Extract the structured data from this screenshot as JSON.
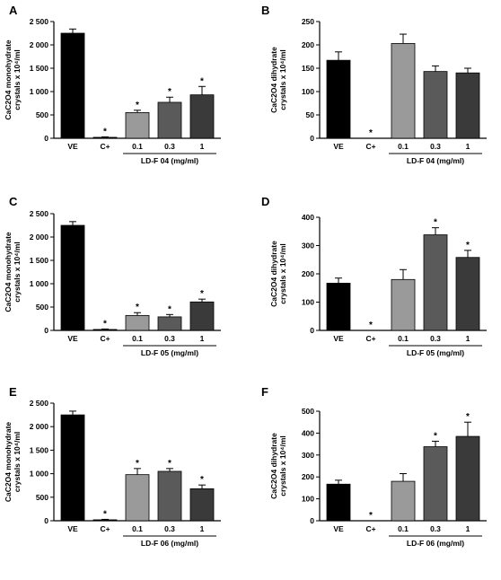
{
  "bar_colors": [
    "#000000",
    "#000000",
    "#9a9a9a",
    "#5a5a5a",
    "#3a3a3a"
  ],
  "chart_data": [
    {
      "panel": "A",
      "type": "bar",
      "categories": [
        "VE",
        "C+",
        "0.1",
        "0.3",
        "1"
      ],
      "values": [
        2250,
        20,
        550,
        770,
        930
      ],
      "errors": [
        90,
        10,
        50,
        110,
        180
      ],
      "significance": [
        "",
        "*",
        "*",
        "*",
        "*"
      ],
      "ylabel_line1": "CaC2O4 monohydrate",
      "ylabel_line2": "crystals x 10⁴/ml",
      "yticks": [
        0,
        500,
        1000,
        1500,
        2000,
        2500
      ],
      "ytick_labels": [
        "0",
        "500",
        "1 000",
        "1 500",
        "2 000",
        "2 500"
      ],
      "ylim": [
        0,
        2500
      ],
      "group_label": "LD-F 04 (mg/ml)"
    },
    {
      "panel": "B",
      "type": "bar",
      "categories": [
        "VE",
        "C+",
        "0.1",
        "0.3",
        "1"
      ],
      "values": [
        167,
        0,
        203,
        143,
        140
      ],
      "errors": [
        18,
        0,
        20,
        12,
        10
      ],
      "significance": [
        "",
        "*",
        "",
        "",
        ""
      ],
      "ylabel_line1": "CaC2O4 dihydrate",
      "ylabel_line2": "crystals x 10⁴/ml",
      "yticks": [
        0,
        50,
        100,
        150,
        200,
        250
      ],
      "ytick_labels": [
        "0",
        "50",
        "100",
        "150",
        "200",
        "250"
      ],
      "ylim": [
        0,
        250
      ],
      "group_label": "LD-F 04 (mg/ml)"
    },
    {
      "panel": "C",
      "type": "bar",
      "categories": [
        "VE",
        "C+",
        "0.1",
        "0.3",
        "1"
      ],
      "values": [
        2250,
        20,
        320,
        290,
        610
      ],
      "errors": [
        80,
        10,
        60,
        50,
        60
      ],
      "significance": [
        "",
        "*",
        "*",
        "*",
        "*"
      ],
      "ylabel_line1": "CaC2O4 monohydrate",
      "ylabel_line2": "crystals x 10⁴/ml",
      "yticks": [
        0,
        500,
        1000,
        1500,
        2000,
        2500
      ],
      "ytick_labels": [
        "0",
        "500",
        "1 000",
        "1 500",
        "2 000",
        "2 500"
      ],
      "ylim": [
        0,
        2500
      ],
      "group_label": "LD-F 05 (mg/ml)"
    },
    {
      "panel": "D",
      "type": "bar",
      "categories": [
        "VE",
        "C+",
        "0.1",
        "0.3",
        "1"
      ],
      "values": [
        167,
        0,
        180,
        338,
        258
      ],
      "errors": [
        18,
        0,
        35,
        25,
        25
      ],
      "significance": [
        "",
        "*",
        "",
        "*",
        "*"
      ],
      "ylabel_line1": "CaC2O4 dihydrate",
      "ylabel_line2": "crystals x 10⁴/ml",
      "yticks": [
        0,
        100,
        200,
        300,
        400
      ],
      "ytick_labels": [
        "0",
        "100",
        "200",
        "300",
        "400"
      ],
      "ylim": [
        0,
        400
      ],
      "group_label": "LD-F 05 (mg/ml)"
    },
    {
      "panel": "E",
      "type": "bar",
      "categories": [
        "VE",
        "C+",
        "0.1",
        "0.3",
        "1"
      ],
      "values": [
        2250,
        20,
        980,
        1050,
        680
      ],
      "errors": [
        80,
        10,
        130,
        60,
        80
      ],
      "significance": [
        "",
        "*",
        "*",
        "*",
        "*"
      ],
      "ylabel_line1": "CaC2O4 monohydrate",
      "ylabel_line2": "crystals x 10⁴/ml",
      "yticks": [
        0,
        500,
        1000,
        1500,
        2000,
        2500
      ],
      "ytick_labels": [
        "0",
        "500",
        "1 000",
        "1 500",
        "2 000",
        "2 500"
      ],
      "ylim": [
        0,
        2500
      ],
      "group_label": "LD-F 06 (mg/ml)"
    },
    {
      "panel": "F",
      "type": "bar",
      "categories": [
        "VE",
        "C+",
        "0.1",
        "0.3",
        "1"
      ],
      "values": [
        167,
        0,
        180,
        338,
        385
      ],
      "errors": [
        18,
        0,
        35,
        25,
        65
      ],
      "significance": [
        "",
        "*",
        "",
        "*",
        "*"
      ],
      "ylabel_line1": "CaC2O4 dihydrate",
      "ylabel_line2": "crystals x 10⁴/ml",
      "yticks": [
        0,
        100,
        200,
        300,
        400,
        500
      ],
      "ytick_labels": [
        "0",
        "100",
        "200",
        "300",
        "400",
        "500"
      ],
      "ylim": [
        0,
        500
      ],
      "group_label": "LD-F 06 (mg/ml)"
    }
  ]
}
